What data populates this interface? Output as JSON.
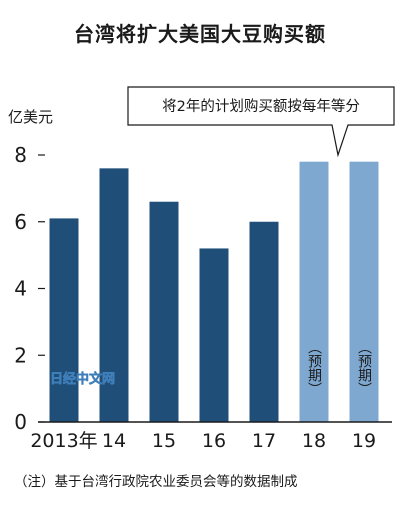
{
  "title": "台湾将扩大美国大豆购买额",
  "footnote": "（注）基于台湾行政院农业委员会等的数据制成",
  "watermark": "日经中文网",
  "callout": "将2年的计划购买额按每年等分",
  "chart_data": {
    "type": "bar",
    "categories": [
      "2013年",
      "14",
      "15",
      "16",
      "17",
      "18",
      "19"
    ],
    "values": [
      6.1,
      7.6,
      6.6,
      5.2,
      6.0,
      7.8,
      7.8
    ],
    "projected": [
      false,
      false,
      false,
      false,
      false,
      true,
      true
    ],
    "projected_label": "（预期）",
    "ylabel": "亿美元",
    "yticks": [
      0,
      2,
      4,
      6,
      8
    ],
    "ylim": [
      0,
      8.6
    ],
    "grid": false,
    "colors": {
      "actual": "#1f4e79",
      "projected": "#7fa8d1",
      "axis": "#1a1a1a"
    }
  }
}
